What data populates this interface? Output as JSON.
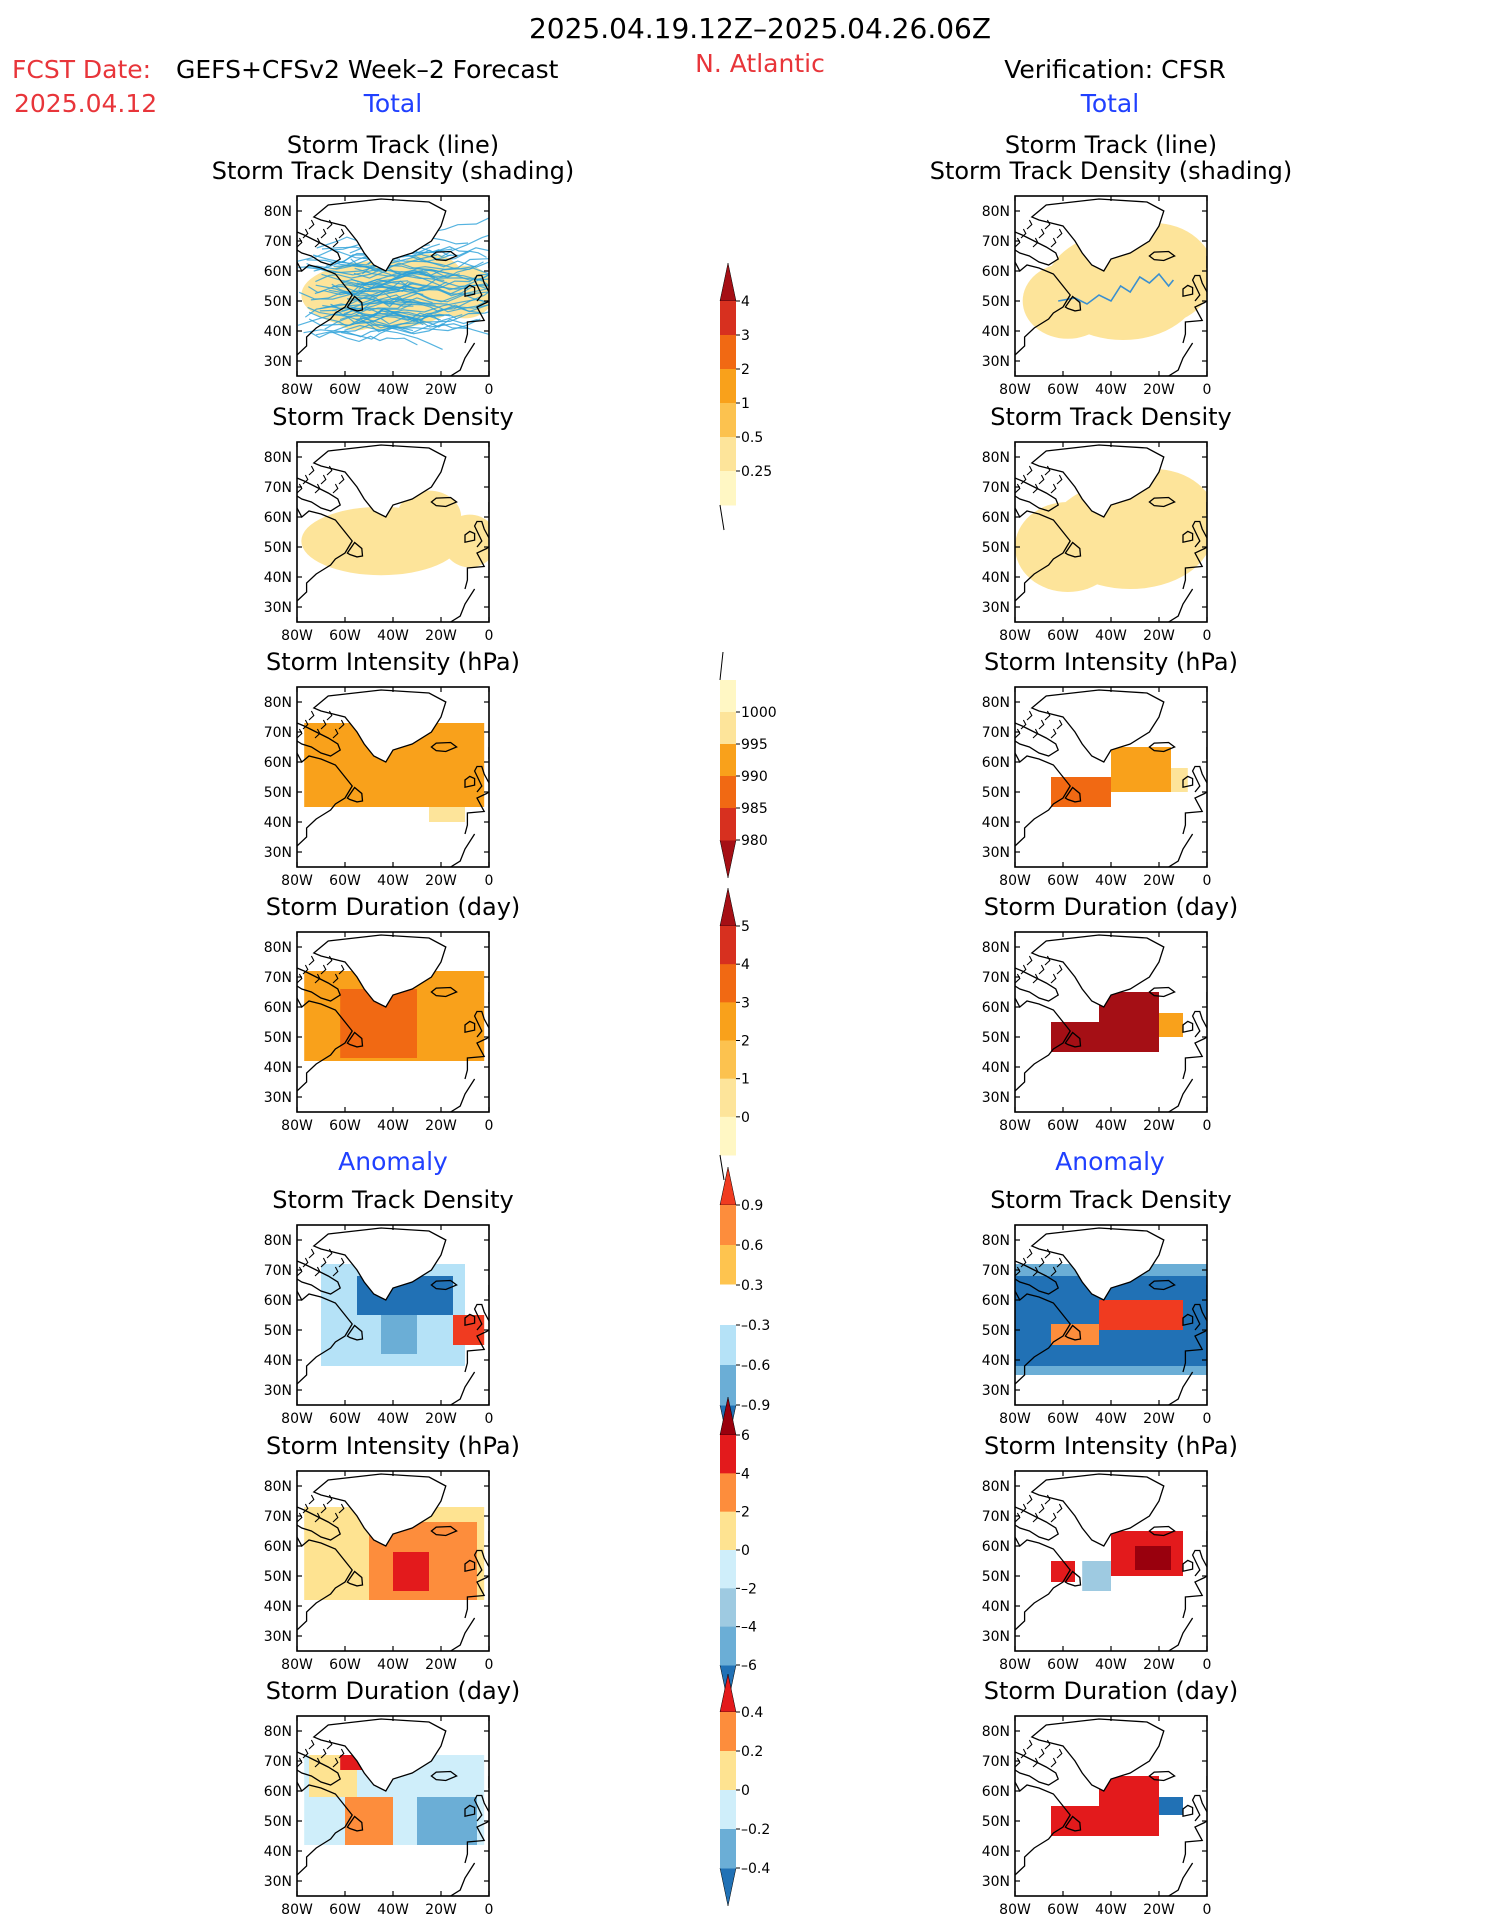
{
  "header": {
    "period": "2025.04.19.12Z–2025.04.26.06Z",
    "region": "N. Atlantic",
    "fcst_label": "FCST Date:",
    "fcst_model": "GEFS+CFSv2 Week–2 Forecast",
    "fcst_date": "2025.04.12",
    "verif_label": "Verification: CFSR"
  },
  "sections": {
    "total": "Total",
    "anomaly": "Anomaly"
  },
  "panel_titles": {
    "track_line": "Storm Track (line)",
    "track_density_shading": "Storm Track Density (shading)",
    "track_density": "Storm Track Density",
    "intensity": "Storm Intensity (hPa)",
    "duration": "Storm Duration (day)"
  },
  "map_ticks": {
    "lat": [
      "80N",
      "70N",
      "60N",
      "50N",
      "40N",
      "30N"
    ],
    "lon": [
      "80W",
      "60W",
      "40W",
      "20W",
      "0"
    ]
  },
  "colorbars": [
    {
      "id": "density-total",
      "labels": [
        "4",
        "3",
        "2",
        "1",
        "0.5",
        "0.25"
      ],
      "colors": [
        "#a50f15",
        "#d7301f",
        "#f16913",
        "#f9a11b",
        "#fcc24f",
        "#fde49a",
        "#fff7c4"
      ],
      "tails": "up"
    },
    {
      "id": "intensity-total",
      "labels": [
        "1000",
        "995",
        "990",
        "985",
        "980"
      ],
      "colors": [
        "#fff7c4",
        "#fde49a",
        "#f9a11b",
        "#f16913",
        "#d7301f",
        "#a50f15"
      ],
      "tails": "down"
    },
    {
      "id": "duration-total",
      "labels": [
        "5",
        "4",
        "3",
        "2",
        "1",
        "0"
      ],
      "colors": [
        "#a50f15",
        "#d7301f",
        "#f16913",
        "#f9a11b",
        "#fcc24f",
        "#fde49a",
        "#fff7c4"
      ],
      "tails": "up"
    },
    {
      "id": "density-anom",
      "labels": [
        "0.9",
        "0.6",
        "0.3",
        "–0.3",
        "–0.6",
        "–0.9"
      ],
      "colors": [
        "#f03b20",
        "#fd8d3c",
        "#fec44f",
        "#ffffff",
        "#b5e2f7",
        "#6baed6",
        "#2171b5"
      ],
      "tails": "both"
    },
    {
      "id": "intensity-anom",
      "labels": [
        "6",
        "4",
        "2",
        "0",
        "–2",
        "–4",
        "–6"
      ],
      "colors": [
        "#99000d",
        "#e31a1c",
        "#fd8d3c",
        "#fee391",
        "#cfeefa",
        "#9ecae1",
        "#6baed6",
        "#2171b5"
      ],
      "tails": "both"
    },
    {
      "id": "duration-anom",
      "labels": [
        "0.4",
        "0.2",
        "0",
        "–0.2",
        "–0.4"
      ],
      "colors": [
        "#e31a1c",
        "#fd8d3c",
        "#fee391",
        "#cfeefa",
        "#6baed6",
        "#2171b5"
      ],
      "tails": "both"
    }
  ],
  "chart_data": [
    {
      "type": "heatmap",
      "title": "Storm Track (line) / Storm Track Density (shading)",
      "column": "GEFS+CFSv2 Week-2 Forecast",
      "section": "Total",
      "x_range": [
        -80,
        0
      ],
      "y_range": [
        25,
        85
      ],
      "blobs": [
        {
          "lon": -45,
          "lat": 52,
          "level": 2,
          "rx": 30,
          "ry": 9
        },
        {
          "lon": -25,
          "lat": 57,
          "level": 3,
          "rx": 8,
          "ry": 4
        },
        {
          "lon": -10,
          "lat": 53,
          "level": 3,
          "rx": 6,
          "ry": 4
        },
        {
          "lon": -55,
          "lat": 48,
          "level": 3,
          "rx": 5,
          "ry": 3
        }
      ],
      "tracks": "many-ensemble-lines"
    },
    {
      "type": "heatmap",
      "title": "Storm Track (line) / Storm Track Density (shading)",
      "column": "Verification: CFSR",
      "section": "Total",
      "x_range": [
        -80,
        0
      ],
      "y_range": [
        25,
        85
      ],
      "blobs": [
        {
          "lon": -35,
          "lat": 55,
          "level": 6,
          "rx": 16,
          "ry": 6
        },
        {
          "lon": -22,
          "lat": 59,
          "level": 6,
          "rx": 9,
          "ry": 5
        },
        {
          "lon": -58,
          "lat": 50,
          "level": 5,
          "rx": 6,
          "ry": 3
        }
      ],
      "tracks": "single-track"
    },
    {
      "type": "heatmap",
      "title": "Storm Track Density",
      "column": "GEFS+CFSv2 Week-2 Forecast",
      "section": "Total",
      "x_range": [
        -80,
        0
      ],
      "y_range": [
        25,
        85
      ],
      "blobs": [
        {
          "lon": -45,
          "lat": 52,
          "level": 2,
          "rx": 30,
          "ry": 9
        },
        {
          "lon": -25,
          "lat": 60,
          "level": 3,
          "rx": 7,
          "ry": 4
        },
        {
          "lon": -8,
          "lat": 52,
          "level": 3,
          "rx": 5,
          "ry": 4
        },
        {
          "lon": -45,
          "lat": 51,
          "level": 3,
          "rx": 6,
          "ry": 3
        }
      ]
    },
    {
      "type": "heatmap",
      "title": "Storm Track Density",
      "column": "Verification: CFSR",
      "section": "Total",
      "x_range": [
        -80,
        0
      ],
      "y_range": [
        25,
        85
      ],
      "blobs": [
        {
          "lon": -32,
          "lat": 54,
          "level": 6,
          "rx": 18,
          "ry": 6
        },
        {
          "lon": -22,
          "lat": 59,
          "level": 6,
          "rx": 10,
          "ry": 5
        },
        {
          "lon": -58,
          "lat": 50,
          "level": 6,
          "rx": 6,
          "ry": 3
        }
      ]
    },
    {
      "type": "heatmap",
      "title": "Storm Intensity (hPa)",
      "column": "GEFS+CFSv2 Week-2 Forecast",
      "section": "Total",
      "x_range": [
        -80,
        0
      ],
      "y_range": [
        25,
        85
      ],
      "cells": [
        {
          "lon0": -77,
          "lon1": -2,
          "lat0": 45,
          "lat1": 73,
          "c": "#f9a11b"
        },
        {
          "lon0": -25,
          "lon1": -10,
          "lat0": 40,
          "lat1": 45,
          "c": "#fde49a"
        }
      ]
    },
    {
      "type": "heatmap",
      "title": "Storm Intensity (hPa)",
      "column": "Verification: CFSR",
      "section": "Total",
      "x_range": [
        -80,
        0
      ],
      "y_range": [
        25,
        85
      ],
      "cells": [
        {
          "lon0": -40,
          "lon1": -15,
          "lat0": 50,
          "lat1": 65,
          "c": "#f9a11b"
        },
        {
          "lon0": -65,
          "lon1": -40,
          "lat0": 45,
          "lat1": 55,
          "c": "#f16913"
        },
        {
          "lon0": -15,
          "lon1": -8,
          "lat0": 50,
          "lat1": 58,
          "c": "#fde49a"
        }
      ]
    },
    {
      "type": "heatmap",
      "title": "Storm Duration (day)",
      "column": "GEFS+CFSv2 Week-2 Forecast",
      "section": "Total",
      "x_range": [
        -80,
        0
      ],
      "y_range": [
        25,
        85
      ],
      "cells": [
        {
          "lon0": -77,
          "lon1": -2,
          "lat0": 42,
          "lat1": 72,
          "c": "#f9a11b"
        },
        {
          "lon0": -62,
          "lon1": -30,
          "lat0": 43,
          "lat1": 66,
          "c": "#f16913"
        }
      ]
    },
    {
      "type": "heatmap",
      "title": "Storm Duration (day)",
      "column": "Verification: CFSR",
      "section": "Total",
      "x_range": [
        -80,
        0
      ],
      "y_range": [
        25,
        85
      ],
      "cells": [
        {
          "lon0": -65,
          "lon1": -20,
          "lat0": 45,
          "lat1": 55,
          "c": "#a50f15"
        },
        {
          "lon0": -45,
          "lon1": -20,
          "lat0": 52,
          "lat1": 65,
          "c": "#a50f15"
        },
        {
          "lon0": -20,
          "lon1": -10,
          "lat0": 50,
          "lat1": 58,
          "c": "#f9a11b"
        }
      ]
    },
    {
      "type": "heatmap",
      "title": "Storm Track Density",
      "column": "GEFS+CFSv2 Week-2 Forecast",
      "section": "Anomaly",
      "x_range": [
        -80,
        0
      ],
      "y_range": [
        25,
        85
      ],
      "cells": [
        {
          "lon0": -70,
          "lon1": -10,
          "lat0": 38,
          "lat1": 72,
          "c": "#b5e2f7"
        },
        {
          "lon0": -55,
          "lon1": -15,
          "lat0": 55,
          "lat1": 68,
          "c": "#2171b5"
        },
        {
          "lon0": -45,
          "lon1": -30,
          "lat0": 42,
          "lat1": 55,
          "c": "#6baed6"
        },
        {
          "lon0": -15,
          "lon1": -2,
          "lat0": 45,
          "lat1": 55,
          "c": "#f03b20"
        }
      ]
    },
    {
      "type": "heatmap",
      "title": "Storm Track Density",
      "column": "Verification: CFSR",
      "section": "Anomaly",
      "x_range": [
        -80,
        0
      ],
      "y_range": [
        25,
        85
      ],
      "cells": [
        {
          "lon0": -80,
          "lon1": 0,
          "lat0": 35,
          "lat1": 72,
          "c": "#6baed6"
        },
        {
          "lon0": -80,
          "lon1": 0,
          "lat0": 38,
          "lat1": 68,
          "c": "#2171b5"
        },
        {
          "lon0": -45,
          "lon1": -10,
          "lat0": 50,
          "lat1": 60,
          "c": "#f03b20"
        },
        {
          "lon0": -65,
          "lon1": -45,
          "lat0": 45,
          "lat1": 52,
          "c": "#fd8d3c"
        }
      ]
    },
    {
      "type": "heatmap",
      "title": "Storm Intensity (hPa)",
      "column": "GEFS+CFSv2 Week-2 Forecast",
      "section": "Anomaly",
      "x_range": [
        -80,
        0
      ],
      "y_range": [
        25,
        85
      ],
      "cells": [
        {
          "lon0": -77,
          "lon1": -2,
          "lat0": 42,
          "lat1": 73,
          "c": "#fee391"
        },
        {
          "lon0": -50,
          "lon1": -5,
          "lat0": 42,
          "lat1": 68,
          "c": "#fd8d3c"
        },
        {
          "lon0": -40,
          "lon1": -25,
          "lat0": 45,
          "lat1": 58,
          "c": "#e31a1c"
        }
      ]
    },
    {
      "type": "heatmap",
      "title": "Storm Intensity (hPa)",
      "column": "Verification: CFSR",
      "section": "Anomaly",
      "x_range": [
        -80,
        0
      ],
      "y_range": [
        25,
        85
      ],
      "cells": [
        {
          "lon0": -40,
          "lon1": -10,
          "lat0": 50,
          "lat1": 65,
          "c": "#e31a1c"
        },
        {
          "lon0": -30,
          "lon1": -15,
          "lat0": 52,
          "lat1": 60,
          "c": "#99000d"
        },
        {
          "lon0": -52,
          "lon1": -40,
          "lat0": 45,
          "lat1": 55,
          "c": "#9ecae1"
        },
        {
          "lon0": -65,
          "lon1": -55,
          "lat0": 48,
          "lat1": 55,
          "c": "#e31a1c"
        }
      ]
    },
    {
      "type": "heatmap",
      "title": "Storm Duration (day)",
      "column": "GEFS+CFSv2 Week-2 Forecast",
      "section": "Anomaly",
      "x_range": [
        -80,
        0
      ],
      "y_range": [
        25,
        85
      ],
      "cells": [
        {
          "lon0": -77,
          "lon1": -2,
          "lat0": 42,
          "lat1": 72,
          "c": "#cfeefa"
        },
        {
          "lon0": -75,
          "lon1": -55,
          "lat0": 58,
          "lat1": 72,
          "c": "#fee391"
        },
        {
          "lon0": -62,
          "lon1": -48,
          "lat0": 67,
          "lat1": 72,
          "c": "#e31a1c"
        },
        {
          "lon0": -60,
          "lon1": -40,
          "lat0": 42,
          "lat1": 58,
          "c": "#fd8d3c"
        },
        {
          "lon0": -30,
          "lon1": -5,
          "lat0": 42,
          "lat1": 58,
          "c": "#6baed6"
        }
      ]
    },
    {
      "type": "heatmap",
      "title": "Storm Duration (day)",
      "column": "Verification: CFSR",
      "section": "Anomaly",
      "x_range": [
        -80,
        0
      ],
      "y_range": [
        25,
        85
      ],
      "cells": [
        {
          "lon0": -65,
          "lon1": -20,
          "lat0": 45,
          "lat1": 55,
          "c": "#e31a1c"
        },
        {
          "lon0": -45,
          "lon1": -20,
          "lat0": 52,
          "lat1": 65,
          "c": "#e31a1c"
        },
        {
          "lon0": -20,
          "lon1": -10,
          "lat0": 52,
          "lat1": 58,
          "c": "#2171b5"
        }
      ]
    }
  ]
}
